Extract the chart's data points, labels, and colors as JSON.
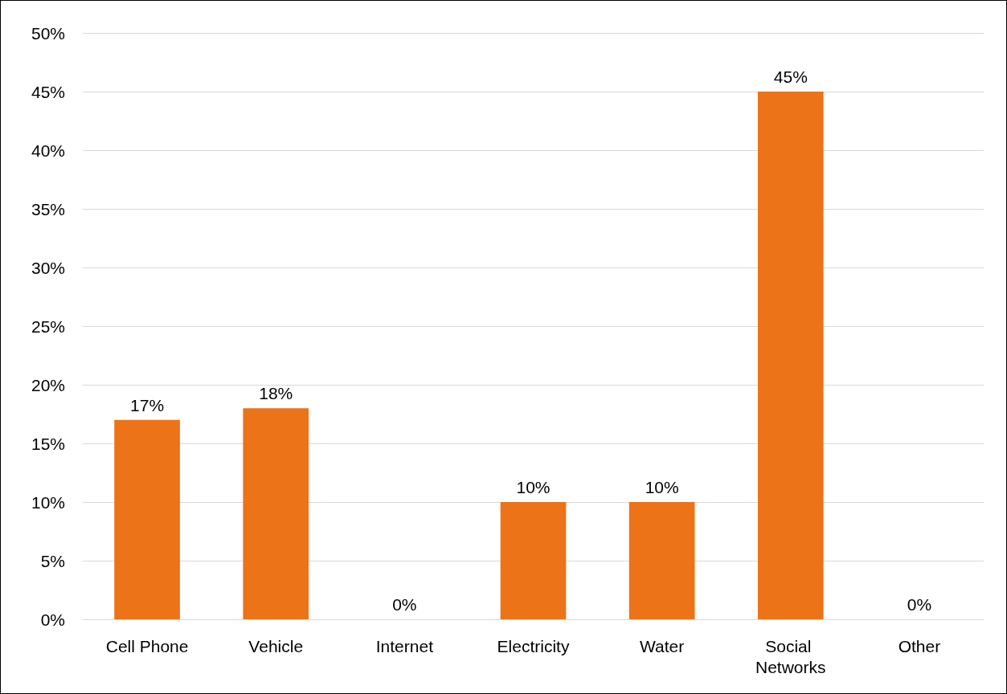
{
  "chart_data": {
    "type": "bar",
    "categories": [
      "Cell Phone",
      "Vehicle",
      "Internet",
      "Electricity",
      "Water",
      "Social Networks",
      "Other"
    ],
    "values": [
      17,
      18,
      0,
      10,
      10,
      45,
      0
    ],
    "value_labels": [
      "17%",
      "18%",
      "0%",
      "10%",
      "10%",
      "45%",
      "0%"
    ],
    "color": "#ec7318",
    "ylim": [
      0,
      50
    ],
    "yticks": [
      {
        "value": 0,
        "label": "0%"
      },
      {
        "value": 5,
        "label": "5%"
      },
      {
        "value": 10,
        "label": "10%"
      },
      {
        "value": 15,
        "label": "15%"
      },
      {
        "value": 20,
        "label": "20%"
      },
      {
        "value": 25,
        "label": "25%"
      },
      {
        "value": 30,
        "label": "30%"
      },
      {
        "value": 35,
        "label": "35%"
      },
      {
        "value": 40,
        "label": "40%"
      },
      {
        "value": 45,
        "label": "45%"
      },
      {
        "value": 50,
        "label": "50%"
      }
    ],
    "grid": "y"
  }
}
